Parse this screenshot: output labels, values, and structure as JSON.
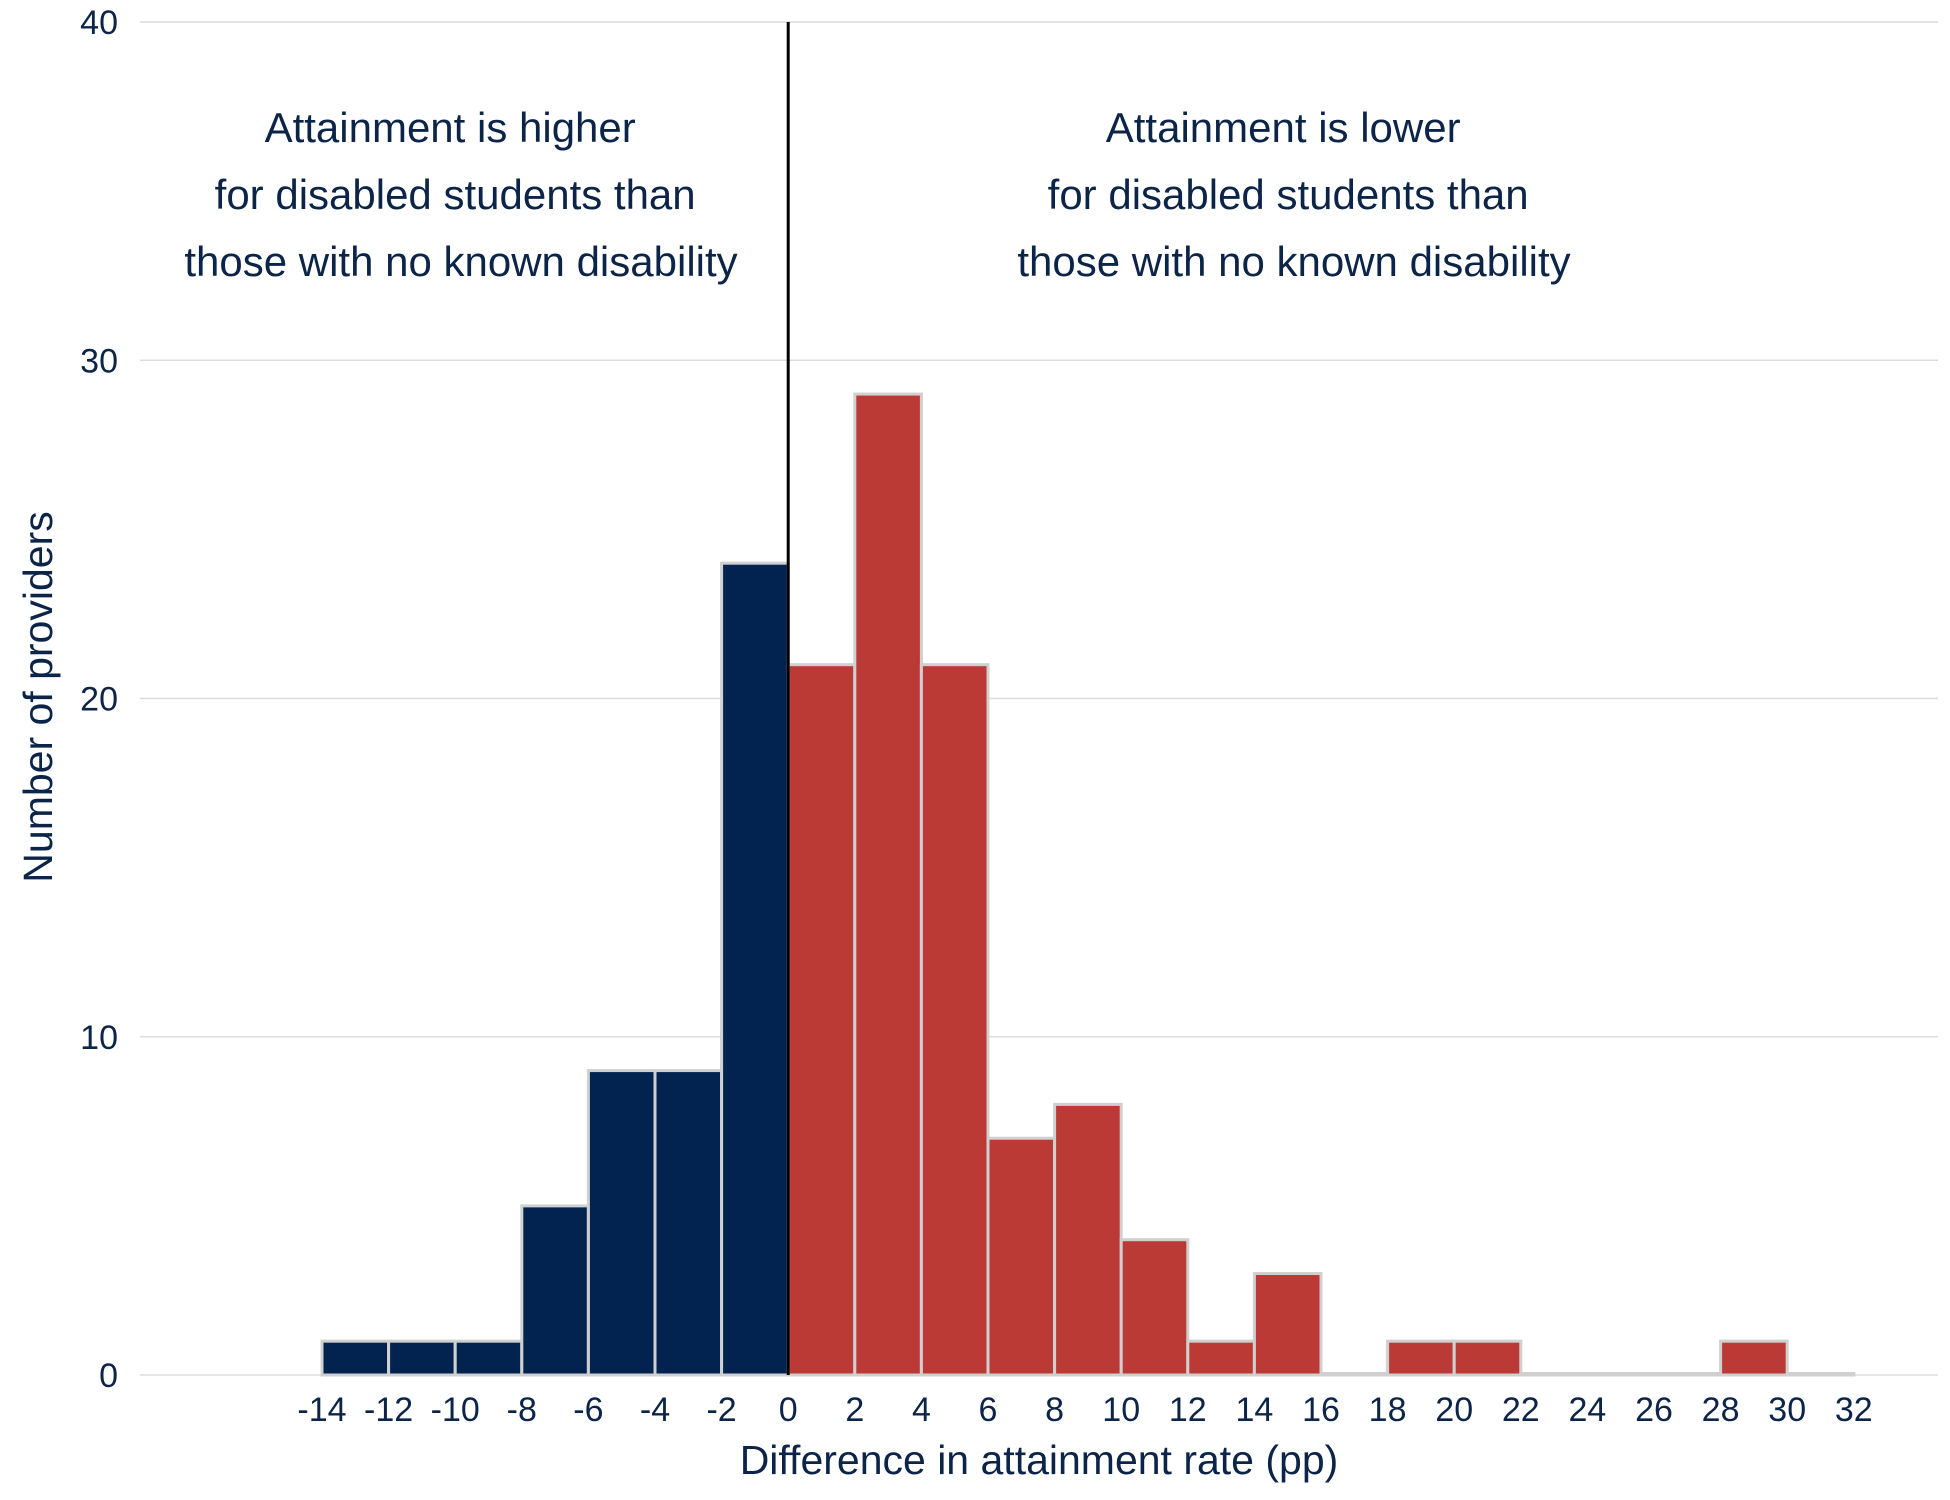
{
  "chart_data": {
    "type": "bar",
    "title": "",
    "xlabel": "Difference in attainment rate (pp)",
    "ylabel": "Number of providers",
    "ylim": [
      0,
      40
    ],
    "yticks": [
      0,
      10,
      20,
      30,
      40
    ],
    "xlim": [
      -14,
      32
    ],
    "xticks": [
      -14,
      -12,
      -10,
      -8,
      -6,
      -4,
      -2,
      0,
      2,
      4,
      6,
      8,
      10,
      12,
      14,
      16,
      18,
      20,
      22,
      24,
      26,
      28,
      30,
      32
    ],
    "grid": "horizontal",
    "divider_at": 0,
    "bin_width": 2,
    "bins": [
      {
        "start": -14,
        "end": -12,
        "count": 1
      },
      {
        "start": -12,
        "end": -10,
        "count": 1
      },
      {
        "start": -10,
        "end": -8,
        "count": 1
      },
      {
        "start": -8,
        "end": -6,
        "count": 5
      },
      {
        "start": -6,
        "end": -4,
        "count": 9
      },
      {
        "start": -4,
        "end": -2,
        "count": 9
      },
      {
        "start": -2,
        "end": 0,
        "count": 24
      },
      {
        "start": 0,
        "end": 2,
        "count": 21
      },
      {
        "start": 2,
        "end": 4,
        "count": 29
      },
      {
        "start": 4,
        "end": 6,
        "count": 21
      },
      {
        "start": 6,
        "end": 8,
        "count": 7
      },
      {
        "start": 8,
        "end": 10,
        "count": 8
      },
      {
        "start": 10,
        "end": 12,
        "count": 4
      },
      {
        "start": 12,
        "end": 14,
        "count": 1
      },
      {
        "start": 14,
        "end": 16,
        "count": 3
      },
      {
        "start": 16,
        "end": 18,
        "count": 0
      },
      {
        "start": 18,
        "end": 20,
        "count": 1
      },
      {
        "start": 20,
        "end": 22,
        "count": 1
      },
      {
        "start": 22,
        "end": 24,
        "count": 0
      },
      {
        "start": 24,
        "end": 26,
        "count": 0
      },
      {
        "start": 26,
        "end": 28,
        "count": 0
      },
      {
        "start": 28,
        "end": 30,
        "count": 1
      },
      {
        "start": 30,
        "end": 32,
        "count": 0
      }
    ],
    "colors": {
      "negative": "#022350",
      "positive": "#bc3a36",
      "bar_outline": "#d0d0d0",
      "divider": "#000000",
      "text": "#0b2448"
    },
    "annotations": {
      "left": [
        "Attainment is higher",
        "for disabled students than",
        "those with no known disability"
      ],
      "right": [
        "Attainment is lower",
        "for disabled students than",
        "those with no known disability"
      ]
    }
  }
}
